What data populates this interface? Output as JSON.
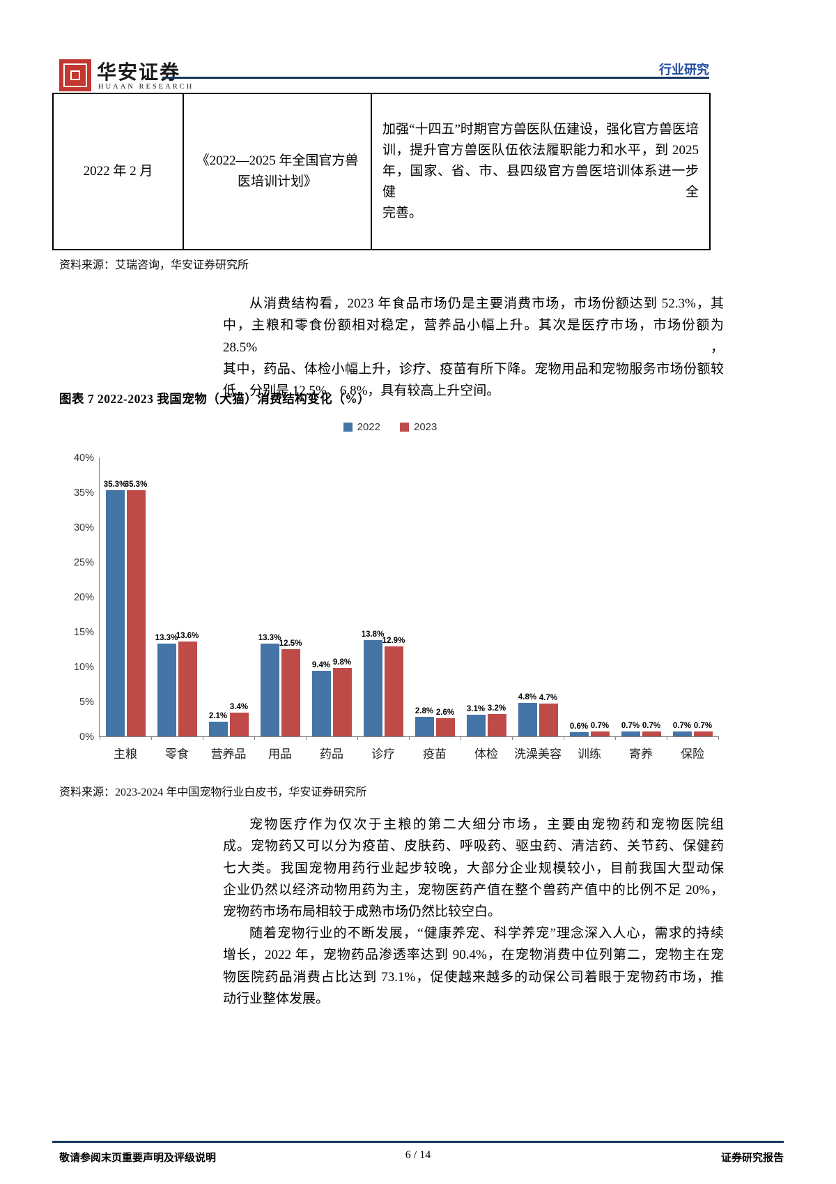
{
  "header": {
    "brand_cn": "华安证券",
    "brand_en": "HUAAN RESEARCH",
    "category": "行业研究"
  },
  "policy_table": {
    "rows": [
      {
        "date": "2022 年 2 月",
        "policy_lines": [
          "《2022—2025 年全国官方兽",
          "医培训计划》"
        ],
        "detail_lines": [
          "加强“十四五”时期官方兽医队伍建设，强化官方兽医培",
          "训，提升官方兽医队伍依法履职能力和水平，到 2025",
          "年，国家、省、市、县四级官方兽医培训体系进一步健全",
          "完善。"
        ]
      }
    ]
  },
  "notes": {
    "source1": "资料来源：艾瑞咨询，华安证券研究所",
    "source2": "资料来源：2023-2024 年中国宠物行业白皮书，华安证券研究所"
  },
  "paragraphs": {
    "p1": {
      "lines": [
        "从消费结构看，2023 年食品市场仍是主要消费市场，市场份额达到 52.3%，其",
        "中，主粮和零食份额相对稳定，营养品小幅上升。其次是医疗市场，市场份额为 28.5%，",
        "其中，药品、体检小幅上升，诊疗、疫苗有所下降。宠物用品和宠物服务市场份额较",
        "低，分别是 12.5%、6.8%，具有较高上升空间。"
      ]
    },
    "p2": {
      "lines": [
        "宠物医疗作为仅次于主粮的第二大细分市场，主要由宠物药和宠物医院组",
        "成。宠物药又可以分为疫苗、皮肤药、呼吸药、驱虫药、清洁药、关节药、保健药",
        "七大类。我国宠物用药行业起步较晚，大部分企业规模较小，目前我国大型动保",
        "企业仍然以经济动物用药为主，宠物医药产值在整个兽药产值中的比例不足 20%，",
        "宠物药市场布局相较于成熟市场仍然比较空白。"
      ]
    },
    "p3": {
      "lines": [
        "随着宠物行业的不断发展，“健康养宠、科学养宠”理念深入人心，需求的持续",
        "增长，2022 年，宠物药品渗透率达到 90.4%，在宠物消费中位列第二，宠物主在宠",
        "物医院药品消费占比达到 73.1%，促使越来越多的动保公司着眼于宠物药市场，推",
        "动行业整体发展。"
      ]
    }
  },
  "figure": {
    "title": "图表 7 2022-2023 我国宠物（犬猫）消费结构变化（%）"
  },
  "chart_data": {
    "type": "bar",
    "title": "图表 7 2022-2023 我国宠物（犬猫）消费结构变化（%）",
    "categories": [
      "主粮",
      "零食",
      "营养品",
      "用品",
      "药品",
      "诊疗",
      "疫苗",
      "体检",
      "洗澡美容",
      "训练",
      "寄养",
      "保险"
    ],
    "series": [
      {
        "name": "2022",
        "color": "#4574A7",
        "values": [
          35.3,
          13.3,
          2.1,
          13.3,
          9.4,
          13.8,
          2.8,
          3.1,
          4.8,
          0.6,
          0.7,
          0.7
        ]
      },
      {
        "name": "2023",
        "color": "#BE4B48",
        "values": [
          35.3,
          13.6,
          3.4,
          12.5,
          9.8,
          12.9,
          2.6,
          3.2,
          4.7,
          0.7,
          0.7,
          0.7
        ]
      }
    ],
    "ylim": [
      0,
      40
    ],
    "yticks": [
      0,
      5,
      10,
      15,
      20,
      25,
      30,
      35,
      40
    ],
    "ytick_suffix": "%",
    "legend_position": "top",
    "grid": false,
    "data_label_suffix": "%"
  },
  "footer": {
    "left": "敬请参阅末页重要声明及评级说明",
    "center": "6 / 14",
    "right": "证券研究报告"
  },
  "colors": {
    "accent_navy": "#17375E",
    "category_blue": "#1F4BA0",
    "bar_blue": "#4574A7",
    "bar_red": "#BE4B48",
    "seal_red": "#C2372F"
  }
}
